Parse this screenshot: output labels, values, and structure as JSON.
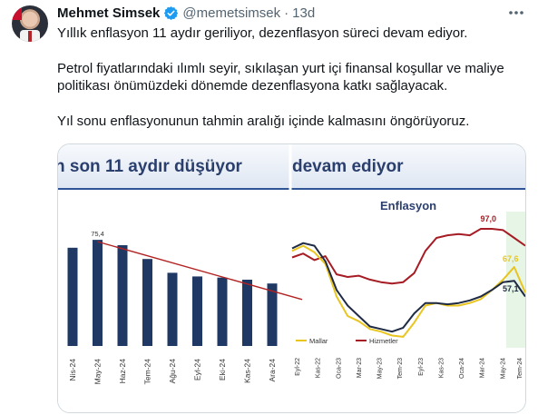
{
  "author": {
    "name": "Mehmet Simsek",
    "handle": "@memetsimsek",
    "separator": "·",
    "time": "13d",
    "verified": true,
    "verified_color": "#1d9bf0"
  },
  "icons": {
    "more": "more-horizontal-icon",
    "verified": "verified-badge-icon"
  },
  "tweet": {
    "paragraphs": [
      "Yıllık enflasyon 11 aydır geriliyor, dezenflasyon süreci devam ediyor.",
      "Petrol fiyatlarındaki ılımlı seyir, sıkılaşan yurt içi finansal koşullar ve maliye politikası önümüzdeki dönemde dezenflasyona katkı sağlayacak.",
      "Yıl sonu enflasyonunun tahmin aralığı içinde kalmasını öngörüyoruz."
    ]
  },
  "chart_data": [
    {
      "type": "bar",
      "title": "n son 11 aydır düşüyor",
      "categories": [
        "Nis-24",
        "May-24",
        "Haz-24",
        "Tem-24",
        "Ağu-24",
        "Eyl-24",
        "Eki-24",
        "Kas-24",
        "Ara-24"
      ],
      "values": [
        69.8,
        75.4,
        71.6,
        61.8,
        52.0,
        49.4,
        48.6,
        47.1,
        44.4
      ],
      "data_labels": [
        {
          "index": 1,
          "text": "75,4"
        }
      ],
      "trend_line": {
        "from": [
          1,
          75.4
        ],
        "to": [
          9.2,
          33.0
        ],
        "color": "#b22222"
      },
      "ylim": [
        0,
        80
      ],
      "bar_color": "#1f3864"
    },
    {
      "type": "line",
      "title": "devam ediyor",
      "subtitle": "Enflasyon",
      "x_ticks": [
        "Eyl-22",
        "Kas-22",
        "Oca-23",
        "Mar-23",
        "May-23",
        "Tem-23",
        "Eyl-23",
        "Kas-23",
        "Oca-24",
        "Mar-24",
        "May-24",
        "Tem-24"
      ],
      "ylim": [
        0,
        120
      ],
      "series": [
        {
          "name": "Hizmetler",
          "color": "#a61c24",
          "values": [
            75,
            78,
            73,
            76,
            62,
            60,
            61,
            58,
            56,
            55,
            56,
            63,
            80,
            90,
            92,
            93,
            92,
            97,
            97,
            96,
            90,
            84
          ]
        },
        {
          "name": "Mallar",
          "color": "#e8c51f",
          "values": [
            80,
            84,
            79,
            70,
            45,
            30,
            26,
            20,
            18,
            15,
            14,
            25,
            38,
            40,
            38,
            38,
            40,
            43,
            50,
            58,
            67.6,
            48
          ]
        },
        {
          "name": "",
          "color": "#1f2a44",
          "values": [
            82,
            86,
            84,
            72,
            50,
            38,
            30,
            22,
            20,
            18,
            21,
            32,
            40,
            40,
            39,
            40,
            42,
            45,
            50,
            56,
            57.1,
            45
          ]
        }
      ],
      "data_labels": [
        {
          "text": "97,0",
          "color": "#a61c24"
        },
        {
          "text": "67,6",
          "color": "#e8c51f"
        },
        {
          "text": "57,1",
          "color": "#1f2a44"
        }
      ],
      "legend_position": "bottom-left",
      "highlight_color": "#e6f5e6"
    }
  ]
}
